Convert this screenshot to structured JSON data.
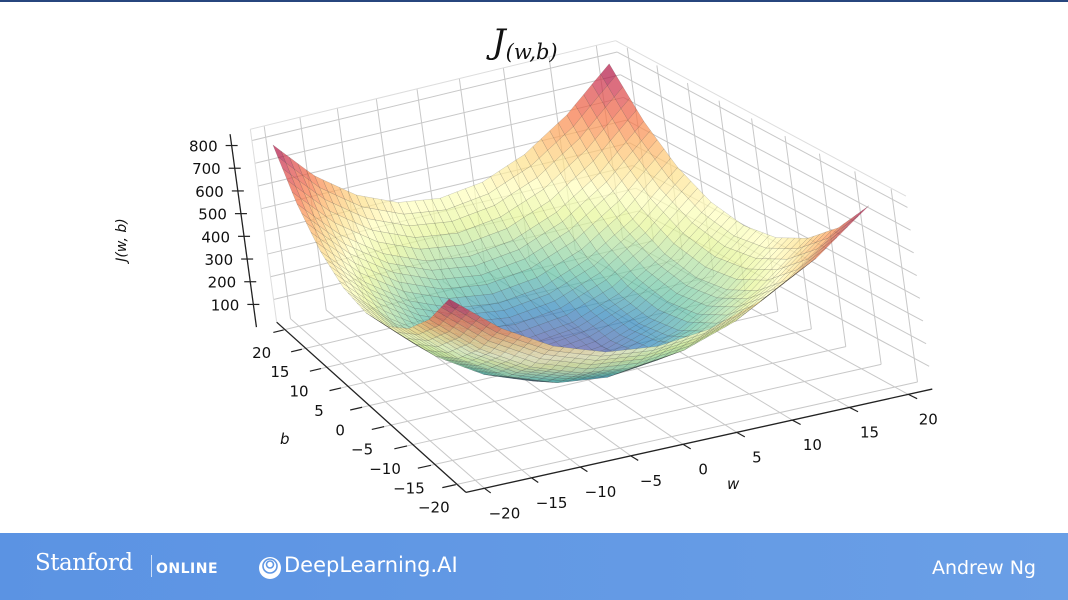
{
  "title": {
    "main": "J",
    "sub": "(w,b)"
  },
  "footer": {
    "stanford": "Stanford",
    "online": "ONLINE",
    "deeplearning": "DeepLearning.AI",
    "author": "Andrew Ng",
    "bg_color": "#5b93e3"
  },
  "chart_data": {
    "type": "surface",
    "title": "J(w,b)",
    "xlabel": "w",
    "ylabel": "b",
    "zlabel": "J(w, b)",
    "xlim": [
      -20,
      20
    ],
    "ylim": [
      -20,
      20
    ],
    "zlim": [
      0,
      800
    ],
    "x_ticks": [
      "−20",
      "−15",
      "−10",
      "−5",
      "0",
      "5",
      "10",
      "15",
      "20"
    ],
    "y_ticks": [
      "−20",
      "−15",
      "−10",
      "−5",
      "0",
      "5",
      "10",
      "15",
      "20"
    ],
    "z_ticks": [
      "100",
      "200",
      "300",
      "400",
      "500",
      "600",
      "700",
      "800"
    ],
    "grid": true,
    "colormap": "Spectral_r",
    "w": [
      -20,
      -15,
      -10,
      -5,
      0,
      5,
      10,
      15,
      20
    ],
    "b": [
      -20,
      -15,
      -10,
      -5,
      0,
      5,
      10,
      15,
      20
    ],
    "J": [
      [
        800,
        625,
        500,
        425,
        400,
        425,
        500,
        625,
        800
      ],
      [
        625,
        450,
        325,
        250,
        225,
        250,
        325,
        450,
        625
      ],
      [
        500,
        325,
        200,
        125,
        100,
        125,
        200,
        325,
        500
      ],
      [
        425,
        250,
        125,
        50,
        25,
        50,
        125,
        250,
        425
      ],
      [
        400,
        225,
        100,
        25,
        0,
        25,
        100,
        225,
        400
      ],
      [
        425,
        250,
        125,
        50,
        25,
        50,
        125,
        250,
        425
      ],
      [
        500,
        325,
        200,
        125,
        100,
        125,
        200,
        325,
        500
      ],
      [
        625,
        450,
        325,
        250,
        225,
        250,
        325,
        450,
        625
      ],
      [
        800,
        625,
        500,
        425,
        400,
        425,
        500,
        625,
        800
      ]
    ]
  }
}
